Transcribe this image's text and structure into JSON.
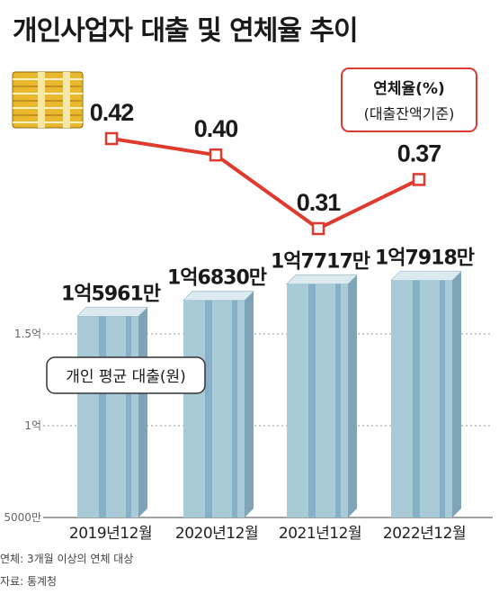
{
  "title": "개인사업자 대출 및 연체율 추이",
  "rate_legend": {
    "title": "연체율(%)",
    "subtitle": "(대출잔액기준)"
  },
  "loan_legend": "개인 평균 대출(원)",
  "notes": [
    "연체: 3개월 이상의 연체 대상",
    "자료: 통계청"
  ],
  "colors": {
    "bar_face": "#a9cbd8",
    "bar_stripe": "#86b0c8",
    "bar_side": "#7fa4b8",
    "bar_top": "#e6f1f6",
    "line": "#e03a2f",
    "accent_border": "#e03a2f"
  },
  "chart_data": [
    {
      "type": "bar",
      "categories": [
        "2019년12월",
        "2020년12월",
        "2021년12월",
        "2022년12월"
      ],
      "values": [
        159610000,
        168300000,
        177170000,
        179180000
      ],
      "value_labels": [
        "1억5961만",
        "1억6830만",
        "1억7717만",
        "1억7918만"
      ],
      "yticks": [
        {
          "value": 50000000,
          "label": "5000만"
        },
        {
          "value": 100000000,
          "label": "1억"
        },
        {
          "value": 150000000,
          "label": "1.5억"
        }
      ],
      "ylim": [
        50000000,
        185000000
      ],
      "series_name": "개인 평균 대출(원)",
      "grid": "dotted"
    },
    {
      "type": "line",
      "categories": [
        "2019년12월",
        "2020년12월",
        "2021년12월",
        "2022년12월"
      ],
      "values": [
        0.42,
        0.4,
        0.31,
        0.37
      ],
      "value_labels": [
        "0.42",
        "0.40",
        "0.31",
        "0.37"
      ],
      "series_name": "연체율(%)",
      "ylabel": "(대출잔액기준)"
    }
  ]
}
